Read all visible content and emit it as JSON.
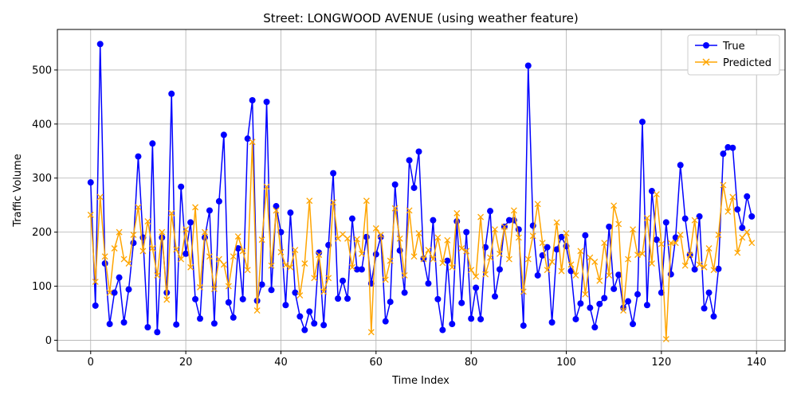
{
  "chart_data": {
    "type": "line",
    "title": "Street: LONGWOOD AVENUE (using weather feature)",
    "xlabel": "Time Index",
    "ylabel": "Traffic Volume",
    "xlim": [
      -7,
      146
    ],
    "ylim": [
      -20,
      575
    ],
    "xticks": [
      0,
      20,
      40,
      60,
      80,
      100,
      120,
      140
    ],
    "yticks": [
      0,
      100,
      200,
      300,
      400,
      500
    ],
    "grid": true,
    "legend_position": "top-right",
    "series": [
      {
        "name": "True",
        "color": "#0000ff",
        "marker": "circle",
        "values": [
          292,
          64,
          548,
          142,
          30,
          88,
          116,
          33,
          94,
          180,
          340,
          190,
          24,
          364,
          15,
          190,
          88,
          456,
          29,
          284,
          160,
          218,
          76,
          40,
          190,
          240,
          31,
          257,
          380,
          70,
          42,
          170,
          76,
          373,
          444,
          73,
          103,
          441,
          93,
          248,
          200,
          65,
          236,
          88,
          44,
          19,
          53,
          31,
          162,
          28,
          176,
          309,
          77,
          110,
          77,
          225,
          131,
          131,
          191,
          105,
          159,
          191,
          35,
          71,
          288,
          166,
          88,
          333,
          282,
          349,
          151,
          105,
          222,
          76,
          19,
          147,
          30,
          220,
          69,
          200,
          40,
          97,
          39,
          172,
          239,
          81,
          131,
          210,
          222,
          222,
          205,
          27,
          508,
          212,
          120,
          157,
          172,
          33,
          168,
          191,
          174,
          128,
          39,
          68,
          194,
          60,
          24,
          67,
          78,
          210,
          95,
          121,
          60,
          72,
          30,
          85,
          404,
          65,
          276,
          186,
          88,
          218,
          122,
          190,
          324,
          225,
          158,
          131,
          229,
          59,
          88,
          44,
          132,
          345,
          357,
          356,
          242,
          208,
          266,
          229
        ]
      },
      {
        "name": "Predicted",
        "color": "#ffa500",
        "marker": "x",
        "values": [
          232,
          108,
          265,
          155,
          88,
          170,
          200,
          150,
          142,
          195,
          246,
          165,
          220,
          170,
          120,
          200,
          75,
          235,
          168,
          150,
          205,
          135,
          246,
          98,
          200,
          155,
          95,
          150,
          140,
          100,
          155,
          192,
          165,
          130,
          367,
          55,
          186,
          284,
          138,
          240,
          163,
          139,
          135,
          167,
          83,
          142,
          258,
          115,
          158,
          90,
          115,
          255,
          188,
          196,
          188,
          135,
          187,
          160,
          258,
          15,
          207,
          195,
          112,
          147,
          244,
          188,
          120,
          240,
          155,
          198,
          150,
          167,
          150,
          190,
          143,
          185,
          135,
          235,
          170,
          165,
          130,
          118,
          228,
          122,
          153,
          205,
          160,
          210,
          150,
          240,
          190,
          90,
          150,
          193,
          252,
          180,
          130,
          145,
          218,
          128,
          198,
          140,
          120,
          165,
          85,
          153,
          145,
          110,
          180,
          120,
          249,
          215,
          55,
          150,
          205,
          158,
          160,
          226,
          142,
          270,
          178,
          2,
          180,
          180,
          195,
          138,
          158,
          222,
          140,
          135,
          170,
          130,
          195,
          287,
          238,
          265,
          162,
          190,
          200,
          180
        ]
      }
    ]
  }
}
